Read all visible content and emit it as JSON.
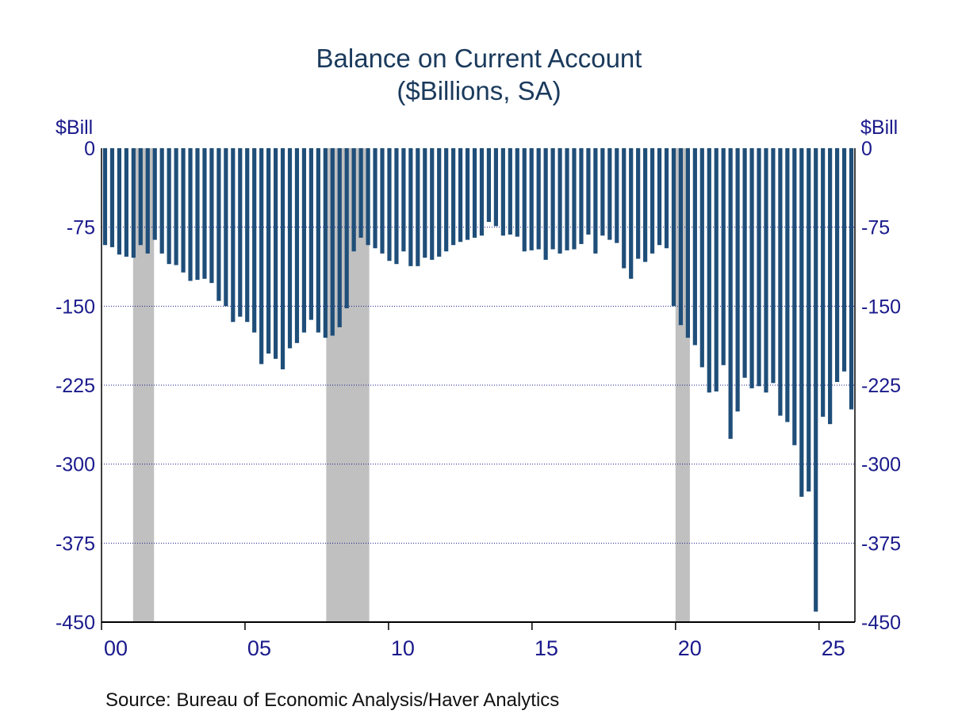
{
  "title_line1": "Balance on Current Account",
  "title_line2": "($Billions, SA)",
  "unit_left": "$Bill",
  "unit_right": "$Bill",
  "source": "Source:  Bureau of Economic Analysis/Haver Analytics",
  "colors": {
    "bar": "#1f4e79",
    "recession": "#c0c0c0",
    "grid": "#1a1a8c",
    "axis": "#1a1a8c"
  },
  "chart_data": {
    "type": "bar",
    "title": "Balance on Current Account",
    "subtitle": "($Billions, SA)",
    "ylabel": "$Bill",
    "ylim": [
      -450,
      0
    ],
    "yticks": [
      0,
      -75,
      -150,
      -225,
      -300,
      -375,
      -450
    ],
    "xlim": [
      2000.0,
      2026.25
    ],
    "xticks": [
      {
        "value": 2000,
        "label": "00"
      },
      {
        "value": 2005,
        "label": "05"
      },
      {
        "value": 2010,
        "label": "10"
      },
      {
        "value": 2015,
        "label": "15"
      },
      {
        "value": 2020,
        "label": "20"
      },
      {
        "value": 2025,
        "label": "25"
      }
    ],
    "grid": true,
    "frequency": "quarterly",
    "start_quarter": "2000Q1",
    "recessions": [
      [
        2001.1,
        2001.83
      ],
      [
        2007.83,
        2009.33
      ],
      [
        2020.0,
        2020.5
      ]
    ],
    "series": [
      {
        "values": [
          -92,
          -94,
          -101,
          -103,
          -104,
          -92,
          -100,
          -87,
          -100,
          -110,
          -111,
          -118,
          -126,
          -125,
          -124,
          -128,
          -145,
          -150,
          -165,
          -160,
          -165,
          -175,
          -205,
          -195,
          -200,
          -210,
          -190,
          -185,
          -175,
          -163,
          -175,
          -180,
          -178,
          -170,
          -152,
          -98,
          -85,
          -92,
          -95,
          -100,
          -107,
          -110,
          -98,
          -112,
          -112,
          -104,
          -106,
          -103,
          -98,
          -92,
          -89,
          -87,
          -85,
          -83,
          -70,
          -74,
          -83,
          -82,
          -84,
          -98,
          -97,
          -96,
          -106,
          -96,
          -100,
          -97,
          -96,
          -91,
          -82,
          -100,
          -83,
          -87,
          -90,
          -114,
          -124,
          -105,
          -108,
          -100,
          -92,
          -95,
          -150,
          -168,
          -180,
          -187,
          -208,
          -232,
          -231,
          -206,
          -276,
          -250,
          -218,
          -228,
          -226,
          -232,
          -223,
          -254,
          -260,
          -282,
          -331,
          -326,
          -440,
          -255,
          -262,
          -222,
          -212,
          -248
        ]
      }
    ]
  }
}
